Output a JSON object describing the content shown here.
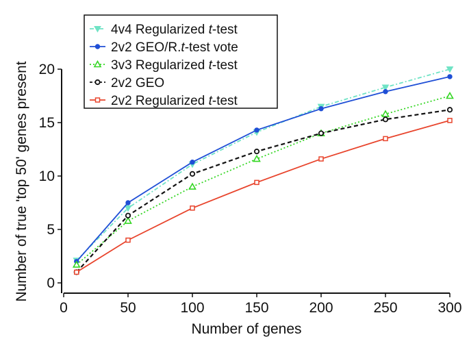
{
  "chart_data": {
    "type": "line",
    "title": "",
    "xlabel": "Number of genes",
    "ylabel": "Number of true 'top 50' genes present",
    "xlim": [
      0,
      300
    ],
    "ylim": [
      0,
      20
    ],
    "xticks": [
      0,
      50,
      100,
      150,
      200,
      250,
      300
    ],
    "yticks": [
      0,
      5,
      10,
      15,
      20
    ],
    "x": [
      10,
      50,
      100,
      150,
      200,
      250,
      300
    ],
    "grid": false,
    "legend_position": "top-left",
    "series": [
      {
        "name": "4v4 Regularized t-test",
        "name_parts": [
          "4v4 Regularized ",
          "t",
          "-test"
        ],
        "color": "#6fe3c5",
        "line_style": "dash-dot",
        "marker": "triangle-down-filled",
        "values": [
          2.1,
          7.0,
          11.1,
          14.1,
          16.5,
          18.3,
          20.0
        ]
      },
      {
        "name": "2v2 GEO/R.t-test vote",
        "name_parts": [
          "2v2 GEO/R.",
          "t",
          "-test vote"
        ],
        "color": "#1f4fd6",
        "line_style": "solid",
        "marker": "circle-filled",
        "values": [
          2.0,
          7.5,
          11.3,
          14.3,
          16.3,
          17.9,
          19.3
        ]
      },
      {
        "name": "3v3 Regularized t-test",
        "name_parts": [
          "3v3 Regularized ",
          "t",
          "-test"
        ],
        "color": "#33d622",
        "line_style": "dotted",
        "marker": "triangle-up-open",
        "values": [
          1.7,
          5.8,
          9.0,
          11.6,
          14.0,
          15.8,
          17.5
        ]
      },
      {
        "name": "2v2 GEO",
        "name_parts": [
          "2v2 GEO",
          "",
          ""
        ],
        "color": "#111111",
        "line_style": "dashed",
        "marker": "circle-open",
        "values": [
          1.0,
          6.3,
          10.2,
          12.3,
          14.0,
          15.3,
          16.2
        ]
      },
      {
        "name": "2v2 Regularized t-test",
        "name_parts": [
          "2v2 Regularized ",
          "t",
          "-test"
        ],
        "color": "#e8442c",
        "line_style": "solid",
        "marker": "square-open",
        "values": [
          1.0,
          4.0,
          7.0,
          9.4,
          11.6,
          13.5,
          15.2
        ]
      }
    ]
  }
}
